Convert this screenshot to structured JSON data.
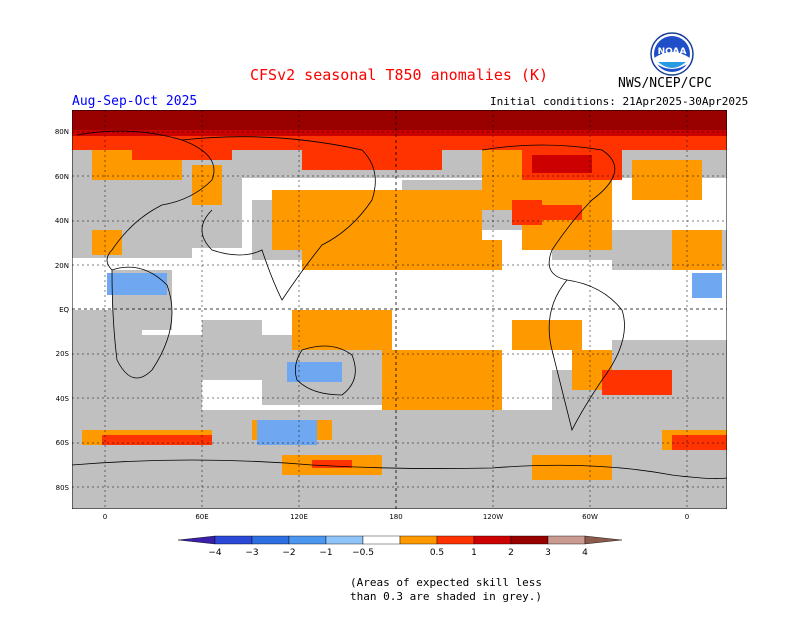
{
  "header": {
    "title": "CFSv2 seasonal T850 anomalies (K)",
    "season": "Aug-Sep-Oct 2025",
    "agency": "NWS/NCEP/CPC",
    "initial_conditions": "Initial conditions: 21Apr2025-30Apr2025",
    "logo_text": "NOAA"
  },
  "map": {
    "lat_labels": [
      "80N",
      "60N",
      "40N",
      "20N",
      "EQ",
      "20S",
      "40S",
      "60S",
      "80S"
    ],
    "lon_labels": [
      "0",
      "60E",
      "120E",
      "180",
      "120W",
      "60W",
      "0"
    ],
    "colors": {
      "grey": "#c0c0c0",
      "lt_orange": "#ff9900",
      "orange_red": "#ff3300",
      "red": "#cc0000",
      "dark_red": "#990000",
      "lt_blue": "#6fa8f0",
      "white": "#ffffff"
    }
  },
  "colorbar": {
    "labels": [
      "−4",
      "−3",
      "−2",
      "−1",
      "−0.5",
      "0.5",
      "1",
      "2",
      "3",
      "4"
    ],
    "colors": [
      "#3a1fa8",
      "#2b48d6",
      "#2d6fe0",
      "#4b97f0",
      "#8ec4f8",
      "#ffffff",
      "#ff9900",
      "#ff3300",
      "#cc0000",
      "#990000",
      "#c89a90",
      "#8b5a4a"
    ]
  },
  "note": {
    "line1": "(Areas of expected skill less",
    "line2": "than 0.3 are shaded in grey.)"
  }
}
